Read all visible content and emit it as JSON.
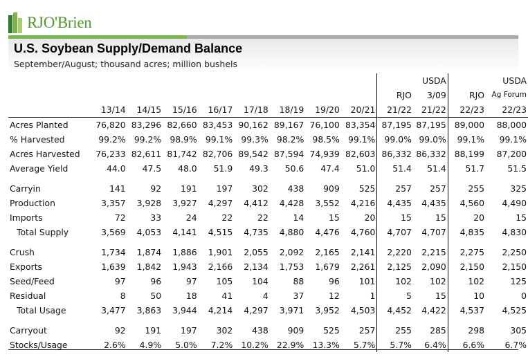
{
  "logo": {
    "text": "RJO'Brien"
  },
  "title": "U.S. Soybean Supply/Demand  Balance",
  "subtitle": "September/August;  thousand acres;  million bushels",
  "headers": {
    "row1": [
      "",
      "",
      "",
      "",
      "",
      "",
      "",
      "",
      "",
      "USDA",
      "",
      "USDA"
    ],
    "row2": [
      "",
      "",
      "",
      "",
      "",
      "",
      "",
      "",
      "RJO",
      "3/09",
      "RJO",
      "Ag Forum"
    ],
    "row3": [
      "13/14",
      "14/15",
      "15/16",
      "16/17",
      "17/18",
      "18/19",
      "19/20",
      "20/21",
      "21/22",
      "21/22",
      "22/23",
      "22/23"
    ]
  },
  "rows": [
    {
      "label": "Acres Planted",
      "values": [
        "76,820",
        "83,296",
        "82,660",
        "83,453",
        "90,162",
        "89,167",
        "76,100",
        "83,354",
        "87,195",
        "87,195",
        "89,000",
        "88,000"
      ]
    },
    {
      "label": "% Harvested",
      "values": [
        "99.2%",
        "99.2%",
        "98.9%",
        "99.1%",
        "99.3%",
        "98.2%",
        "98.5%",
        "99.1%",
        "99.0%",
        "99.0%",
        "99.1%",
        "99.1%"
      ]
    },
    {
      "label": "Acres Harvested",
      "values": [
        "76,233",
        "82,611",
        "81,742",
        "82,706",
        "89,542",
        "87,594",
        "74,939",
        "82,603",
        "86,332",
        "86,332",
        "88,199",
        "87,200"
      ]
    },
    {
      "label": "Average Yield",
      "values": [
        "44.0",
        "47.5",
        "48.0",
        "51.9",
        "49.3",
        "50.6",
        "47.4",
        "51.0",
        "51.4",
        "51.4",
        "51.7",
        "51.5"
      ]
    },
    {
      "label": "Carryin",
      "values": [
        "141",
        "92",
        "191",
        "197",
        "302",
        "438",
        "909",
        "525",
        "257",
        "257",
        "255",
        "325"
      ]
    },
    {
      "label": "Production",
      "values": [
        "3,357",
        "3,928",
        "3,927",
        "4,297",
        "4,412",
        "4,428",
        "3,552",
        "4,216",
        "4,435",
        "4,435",
        "4,560",
        "4,490"
      ]
    },
    {
      "label": "Imports",
      "values": [
        "72",
        "33",
        "24",
        "22",
        "22",
        "14",
        "15",
        "20",
        "15",
        "15",
        "20",
        "15"
      ]
    },
    {
      "label": "Total Supply",
      "values": [
        "3,569",
        "4,053",
        "4,141",
        "4,515",
        "4,735",
        "4,880",
        "4,476",
        "4,760",
        "4,707",
        "4,707",
        "4,835",
        "4,830"
      ]
    },
    {
      "label": "Crush",
      "values": [
        "1,734",
        "1,874",
        "1,886",
        "1,901",
        "2,055",
        "2,092",
        "2,165",
        "2,141",
        "2,220",
        "2,215",
        "2,275",
        "2,250"
      ]
    },
    {
      "label": "Exports",
      "values": [
        "1,639",
        "1,842",
        "1,943",
        "2,166",
        "2,134",
        "1,753",
        "1,679",
        "2,261",
        "2,125",
        "2,090",
        "2,150",
        "2,150"
      ]
    },
    {
      "label": "Seed/Feed",
      "values": [
        "97",
        "96",
        "97",
        "105",
        "104",
        "88",
        "96",
        "101",
        "102",
        "102",
        "102",
        "125"
      ]
    },
    {
      "label": "Residual",
      "values": [
        "8",
        "50",
        "18",
        "41",
        "4",
        "37",
        "12",
        "1",
        "5",
        "15",
        "10",
        "0"
      ]
    },
    {
      "label": "Total Usage",
      "values": [
        "3,477",
        "3,863",
        "3,944",
        "4,214",
        "4,297",
        "3,971",
        "3,952",
        "4,503",
        "4,452",
        "4,422",
        "4,537",
        "4,525"
      ]
    },
    {
      "label": "Carryout",
      "values": [
        "92",
        "191",
        "197",
        "302",
        "438",
        "909",
        "525",
        "257",
        "255",
        "285",
        "298",
        "305"
      ]
    },
    {
      "label": "Stocks/Usage",
      "values": [
        "2.6%",
        "4.9%",
        "5.0%",
        "7.2%",
        "10.2%",
        "22.9%",
        "13.3%",
        "5.7%",
        "5.7%",
        "6.4%",
        "6.6%",
        "6.7%"
      ]
    }
  ],
  "colors": {
    "brand_green": "#7ab648",
    "logo_green": "#4f9a2a",
    "rule_gray": "#a9a9a9"
  }
}
